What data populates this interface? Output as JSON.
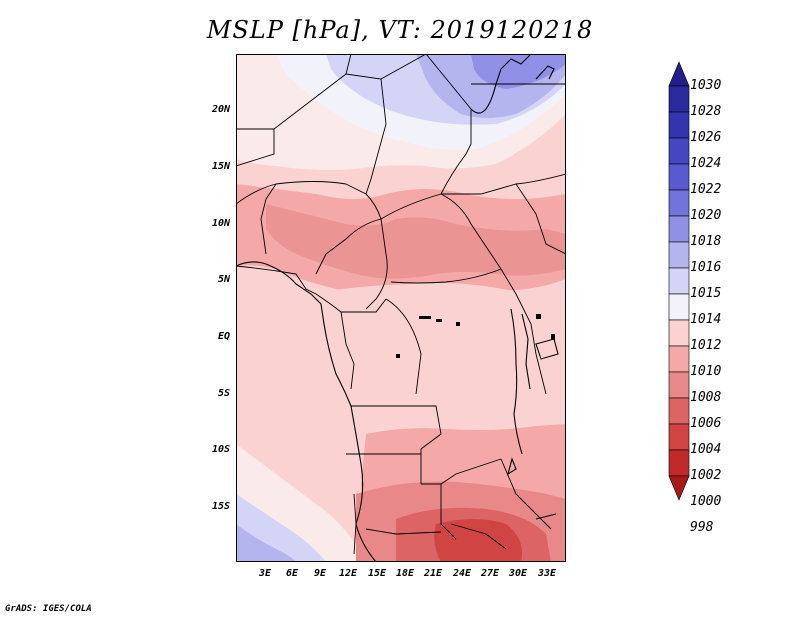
{
  "title": "MSLP [hPa], VT: 2019120218",
  "footer": "GrADS: IGES/COLA",
  "lat_labels": [
    "20N",
    "15N",
    "10N",
    "5N",
    "EQ",
    "5S",
    "10S",
    "15S"
  ],
  "lon_labels": [
    "3E",
    "6E",
    "9E",
    "12E",
    "15E",
    "18E",
    "21E",
    "24E",
    "27E",
    "30E",
    "33E"
  ],
  "colorbar": {
    "levels": [
      "1030",
      "1028",
      "1026",
      "1024",
      "1022",
      "1020",
      "1018",
      "1016",
      "1015",
      "1014",
      "1012",
      "1010",
      "1008",
      "1006",
      "1004",
      "1002",
      "1000",
      "998"
    ],
    "colors": [
      "#221f8c",
      "#2a2a9e",
      "#3434b0",
      "#4646c0",
      "#5a5ad0",
      "#7373dc",
      "#9090e6",
      "#b4b4ef",
      "#d4d4f7",
      "#f2f2fb",
      "#fbd2d2",
      "#f4a8a8",
      "#e88888",
      "#dc6464",
      "#d04444",
      "#c22a2a",
      "#a81a1a"
    ]
  },
  "pressure_regions": [
    {
      "name": "north-high",
      "color": "#b4b4ef"
    },
    {
      "name": "southwest-high",
      "color": "#b4b4ef"
    },
    {
      "name": "sahara-ridge",
      "color": "#d4d4f7"
    },
    {
      "name": "sahel-band",
      "color": "#f4a8a8"
    },
    {
      "name": "congo-basin",
      "color": "#fbd2d2"
    },
    {
      "name": "southern-low",
      "color": "#dc6464"
    },
    {
      "name": "southern-core-low",
      "color": "#d04444"
    }
  ]
}
